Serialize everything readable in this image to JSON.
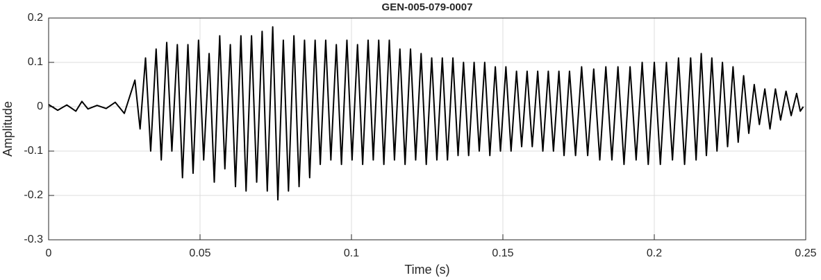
{
  "chart_data": {
    "type": "line",
    "title": "GEN-005-079-0007",
    "x_label": "Time (s)",
    "y_label": "Amplitude",
    "xlim": [
      0,
      0.25
    ],
    "xticks": [
      0,
      0.05,
      0.1,
      0.15,
      0.2,
      0.25
    ],
    "ylim": [
      -0.3,
      0.2
    ],
    "yticks": [
      -0.3,
      -0.2,
      -0.1,
      0,
      0.1,
      0.2
    ],
    "grid": true,
    "series": [
      {
        "color": "#000000",
        "x": [
          0,
          0.003,
          0.006,
          0.009,
          0.011,
          0.013,
          0.016,
          0.019,
          0.022,
          0.025,
          0.0285,
          0.0302,
          0.032,
          0.0337,
          0.0355,
          0.0372,
          0.039,
          0.0407,
          0.0425,
          0.0442,
          0.046,
          0.0477,
          0.0495,
          0.0512,
          0.053,
          0.0547,
          0.0565,
          0.0582,
          0.06,
          0.0617,
          0.0635,
          0.0652,
          0.067,
          0.0687,
          0.0705,
          0.0722,
          0.074,
          0.0757,
          0.0775,
          0.0792,
          0.081,
          0.0827,
          0.0845,
          0.0862,
          0.088,
          0.0897,
          0.0915,
          0.0932,
          0.095,
          0.0967,
          0.0985,
          0.1002,
          0.102,
          0.1037,
          0.1055,
          0.1072,
          0.109,
          0.1107,
          0.1125,
          0.1142,
          0.116,
          0.1177,
          0.1195,
          0.1212,
          0.123,
          0.1247,
          0.1265,
          0.1282,
          0.13,
          0.1317,
          0.1335,
          0.1352,
          0.137,
          0.1387,
          0.1405,
          0.1422,
          0.144,
          0.1457,
          0.1475,
          0.1492,
          0.151,
          0.1527,
          0.1545,
          0.1562,
          0.158,
          0.1597,
          0.1615,
          0.1632,
          0.165,
          0.1667,
          0.1685,
          0.1702,
          0.172,
          0.174,
          0.176,
          0.178,
          0.18,
          0.182,
          0.184,
          0.186,
          0.188,
          0.19,
          0.192,
          0.194,
          0.196,
          0.198,
          0.2,
          0.202,
          0.204,
          0.206,
          0.208,
          0.21,
          0.212,
          0.2138,
          0.2155,
          0.2172,
          0.219,
          0.2207,
          0.2225,
          0.2242,
          0.226,
          0.2277,
          0.2295,
          0.2312,
          0.233,
          0.2347,
          0.2365,
          0.2382,
          0.24,
          0.2417,
          0.2435,
          0.2452,
          0.247,
          0.2482,
          0.2492
        ],
        "values": [
          0.005,
          -0.008,
          0.004,
          -0.01,
          0.012,
          -0.005,
          0.003,
          -0.004,
          0.01,
          -0.015,
          0.06,
          -0.05,
          0.11,
          -0.1,
          0.13,
          -0.12,
          0.145,
          -0.1,
          0.14,
          -0.16,
          0.14,
          -0.15,
          0.15,
          -0.12,
          0.12,
          -0.17,
          0.16,
          -0.14,
          0.14,
          -0.18,
          0.16,
          -0.19,
          0.16,
          -0.17,
          0.17,
          -0.19,
          0.18,
          -0.21,
          0.15,
          -0.19,
          0.16,
          -0.18,
          0.15,
          -0.16,
          0.15,
          -0.13,
          0.15,
          -0.12,
          0.14,
          -0.13,
          0.15,
          -0.12,
          0.14,
          -0.13,
          0.15,
          -0.12,
          0.15,
          -0.13,
          0.15,
          -0.12,
          0.13,
          -0.13,
          0.13,
          -0.12,
          0.12,
          -0.13,
          0.11,
          -0.12,
          0.11,
          -0.12,
          0.11,
          -0.11,
          0.1,
          -0.11,
          0.1,
          -0.1,
          0.1,
          -0.11,
          0.09,
          -0.1,
          0.09,
          -0.1,
          0.08,
          -0.09,
          0.08,
          -0.09,
          0.08,
          -0.1,
          0.08,
          -0.1,
          0.08,
          -0.11,
          0.08,
          -0.11,
          0.09,
          -0.11,
          0.085,
          -0.12,
          0.09,
          -0.12,
          0.09,
          -0.13,
          0.09,
          -0.12,
          0.1,
          -0.13,
          0.1,
          -0.13,
          0.1,
          -0.12,
          0.11,
          -0.13,
          0.11,
          -0.12,
          0.12,
          -0.11,
          0.11,
          -0.1,
          0.1,
          -0.09,
          0.09,
          -0.08,
          0.07,
          -0.06,
          0.05,
          -0.04,
          0.04,
          -0.05,
          0.04,
          -0.03,
          0.035,
          -0.02,
          0.03,
          -0.01,
          0
        ]
      }
    ]
  }
}
